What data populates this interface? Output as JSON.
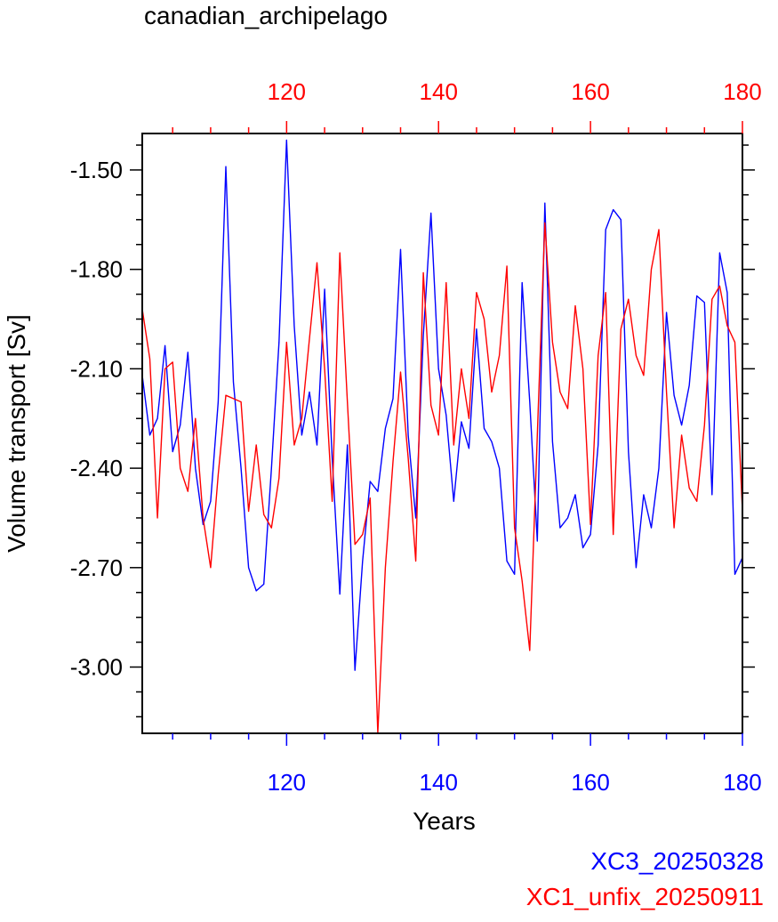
{
  "chart_data": {
    "type": "line",
    "title": "canadian_archipelago",
    "xlabel": "Years",
    "ylabel": "Volume transport [Sv]",
    "xlim": [
      101,
      180
    ],
    "ylim": [
      -3.2,
      -1.39
    ],
    "x_ticks": [
      120,
      140,
      160,
      180
    ],
    "x_tick_labels": [
      "120",
      "140",
      "160",
      "180"
    ],
    "y_ticks": [
      -1.5,
      -1.8,
      -2.1,
      -2.4,
      -2.7,
      -3.0
    ],
    "y_tick_labels": [
      "-1.50",
      "-1.80",
      "-2.10",
      "-2.40",
      "-2.70",
      "-3.00"
    ],
    "top_axis_color": "#ff0000",
    "bottom_axis_color": "#0000ff",
    "grid": false,
    "legend_position": "bottom-right, below plot",
    "x": [
      101,
      102,
      103,
      104,
      105,
      106,
      107,
      108,
      109,
      110,
      111,
      112,
      113,
      114,
      115,
      116,
      117,
      118,
      119,
      120,
      121,
      122,
      123,
      124,
      125,
      126,
      127,
      128,
      129,
      130,
      131,
      132,
      133,
      134,
      135,
      136,
      137,
      138,
      139,
      140,
      141,
      142,
      143,
      144,
      145,
      146,
      147,
      148,
      149,
      150,
      151,
      152,
      153,
      154,
      155,
      156,
      157,
      158,
      159,
      160,
      161,
      162,
      163,
      164,
      165,
      166,
      167,
      168,
      169,
      170,
      171,
      172,
      173,
      174,
      175,
      176,
      177,
      178,
      179,
      180
    ],
    "series": [
      {
        "name": "XC3_20250328",
        "color": "#0000ff",
        "values": [
          -2.12,
          -2.3,
          -2.25,
          -2.03,
          -2.35,
          -2.27,
          -2.05,
          -2.4,
          -2.57,
          -2.5,
          -2.2,
          -1.49,
          -2.14,
          -2.4,
          -2.7,
          -2.77,
          -2.75,
          -2.4,
          -2.02,
          -1.41,
          -1.97,
          -2.3,
          -2.17,
          -2.33,
          -1.86,
          -2.37,
          -2.78,
          -2.33,
          -3.01,
          -2.68,
          -2.44,
          -2.47,
          -2.28,
          -2.19,
          -1.74,
          -2.3,
          -2.55,
          -2.0,
          -1.63,
          -2.1,
          -2.24,
          -2.5,
          -2.26,
          -2.34,
          -1.98,
          -2.28,
          -2.32,
          -2.4,
          -2.68,
          -2.72,
          -1.84,
          -2.2,
          -2.62,
          -1.6,
          -2.32,
          -2.58,
          -2.55,
          -2.48,
          -2.64,
          -2.6,
          -2.33,
          -1.68,
          -1.62,
          -1.65,
          -2.35,
          -2.7,
          -2.48,
          -2.58,
          -2.4,
          -1.93,
          -2.18,
          -2.27,
          -2.15,
          -1.88,
          -1.9,
          -2.48,
          -1.75,
          -1.87,
          -2.72,
          -2.67
        ]
      },
      {
        "name": "XC1_unfix_20250911",
        "color": "#ff0000",
        "values": [
          -1.92,
          -2.07,
          -2.55,
          -2.1,
          -2.08,
          -2.4,
          -2.47,
          -2.25,
          -2.55,
          -2.7,
          -2.42,
          -2.18,
          -2.19,
          -2.2,
          -2.53,
          -2.33,
          -2.54,
          -2.58,
          -2.43,
          -2.02,
          -2.33,
          -2.25,
          -2.01,
          -1.78,
          -2.1,
          -2.5,
          -1.75,
          -2.2,
          -2.63,
          -2.6,
          -2.49,
          -3.2,
          -2.7,
          -2.38,
          -2.11,
          -2.37,
          -2.68,
          -1.81,
          -2.21,
          -2.3,
          -1.84,
          -2.33,
          -2.1,
          -2.25,
          -1.87,
          -1.95,
          -2.17,
          -2.06,
          -1.79,
          -2.58,
          -2.74,
          -2.95,
          -2.3,
          -1.66,
          -2.02,
          -2.17,
          -2.22,
          -1.91,
          -2.1,
          -2.57,
          -2.06,
          -1.87,
          -2.6,
          -1.98,
          -1.89,
          -2.06,
          -2.12,
          -1.8,
          -1.68,
          -2.17,
          -2.58,
          -2.3,
          -2.46,
          -2.5,
          -2.27,
          -1.89,
          -1.85,
          -1.97,
          -2.02,
          -2.53
        ]
      }
    ]
  }
}
